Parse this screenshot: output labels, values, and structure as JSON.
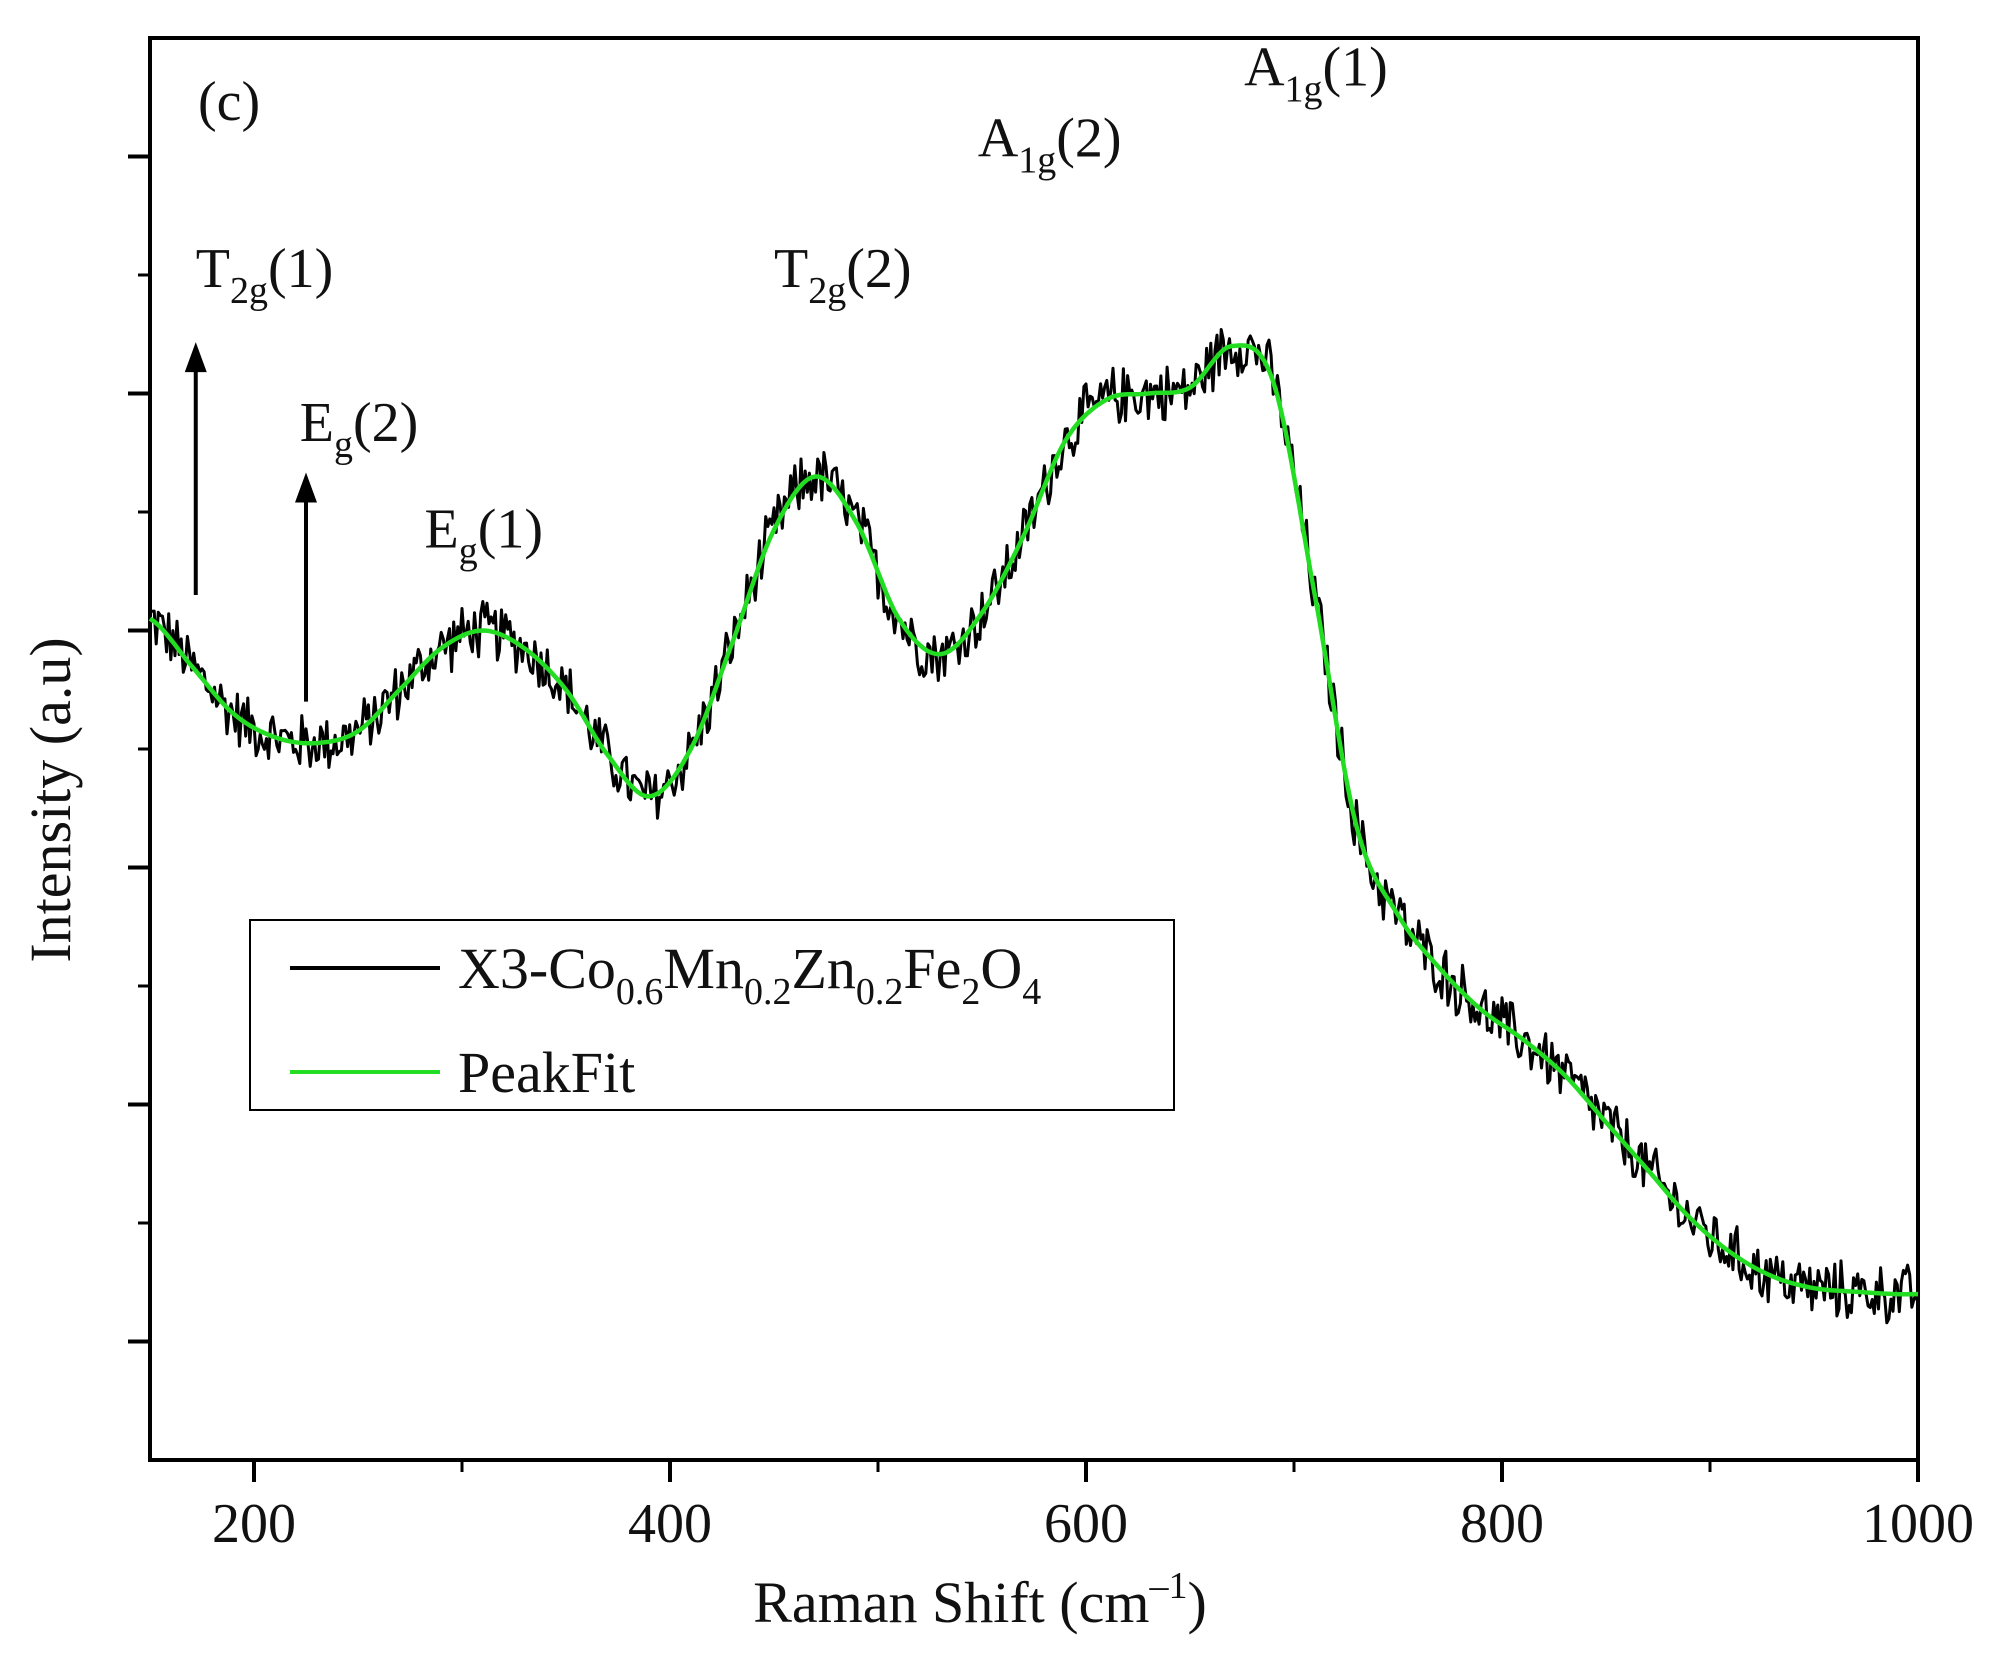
{
  "panel_label": "(c)",
  "chart_data": {
    "type": "line",
    "title": "",
    "panel_label": "(c)",
    "xlabel": "Raman Shift (cm–1)",
    "xlabel_parts": {
      "main": "Raman Shift (cm",
      "sup": "–1",
      "end": ")"
    },
    "ylabel": "Intensity (a.u)",
    "xlim": [
      150,
      1000
    ],
    "ylim": [
      0,
      12
    ],
    "x_ticks": [
      200,
      400,
      600,
      800,
      1000
    ],
    "x_minor_ticks": [
      300,
      500,
      700,
      900
    ],
    "y_ticks": [
      1,
      3,
      5,
      7,
      9,
      11
    ],
    "y_minor_ticks": [
      2,
      4,
      6,
      8,
      10
    ],
    "legend_position": "middle-left",
    "series": [
      {
        "name": "X3-Co0.6Mn0.2Zn0.2Fe2O4",
        "legend_parts": [
          {
            "t": "X3-Co",
            "s": "0.6"
          },
          {
            "t": "Mn",
            "s": "0.2"
          },
          {
            "t": "Zn",
            "s": "0.2"
          },
          {
            "t": "Fe",
            "s": "2"
          },
          {
            "t": "O",
            "s": "4"
          }
        ],
        "color": "#000000",
        "style": "noisy",
        "noise_amplitude": 0.28,
        "x": [
          150,
          170,
          190,
          210,
          230,
          250,
          270,
          290,
          310,
          330,
          350,
          370,
          390,
          410,
          430,
          450,
          470,
          490,
          510,
          530,
          550,
          570,
          590,
          610,
          630,
          650,
          670,
          690,
          710,
          730,
          750,
          770,
          790,
          810,
          830,
          850,
          870,
          890,
          910,
          930,
          950,
          970,
          990,
          1000
        ],
        "y": [
          7.1,
          6.7,
          6.3,
          6.1,
          6.05,
          6.15,
          6.5,
          6.85,
          7.0,
          6.85,
          6.5,
          5.95,
          5.6,
          6.0,
          6.9,
          7.85,
          8.3,
          7.9,
          7.1,
          6.8,
          7.15,
          7.8,
          8.6,
          8.95,
          9.0,
          9.05,
          9.4,
          9.1,
          7.3,
          5.35,
          4.6,
          4.15,
          3.8,
          3.55,
          3.25,
          2.85,
          2.45,
          2.05,
          1.75,
          1.55,
          1.45,
          1.42,
          1.4,
          1.4
        ]
      },
      {
        "name": "PeakFit",
        "color": "#22dd22",
        "style": "smooth",
        "x": [
          150,
          170,
          190,
          210,
          230,
          250,
          270,
          290,
          310,
          330,
          350,
          370,
          390,
          410,
          430,
          450,
          470,
          490,
          510,
          530,
          550,
          570,
          590,
          610,
          630,
          650,
          670,
          690,
          710,
          730,
          750,
          770,
          790,
          810,
          830,
          850,
          870,
          890,
          910,
          930,
          950,
          970,
          990,
          1000
        ],
        "y": [
          7.1,
          6.7,
          6.3,
          6.1,
          6.05,
          6.15,
          6.5,
          6.85,
          7.0,
          6.85,
          6.5,
          5.95,
          5.6,
          6.0,
          6.9,
          7.85,
          8.3,
          7.9,
          7.1,
          6.8,
          7.15,
          7.8,
          8.6,
          8.95,
          9.0,
          9.05,
          9.4,
          9.1,
          7.3,
          5.35,
          4.6,
          4.15,
          3.8,
          3.55,
          3.25,
          2.85,
          2.45,
          2.05,
          1.75,
          1.55,
          1.45,
          1.42,
          1.4,
          1.4
        ]
      }
    ],
    "annotations": [
      {
        "id": "t2g1",
        "main": "T",
        "sub": "2g",
        "tail": "(1)",
        "x": 172,
        "y": 9.9,
        "arrow": {
          "x": 172,
          "y_from": 7.3,
          "y_to": 9.4
        }
      },
      {
        "id": "eg2",
        "main": "E",
        "sub": "g",
        "tail": "(2)",
        "x": 222,
        "y": 8.6,
        "arrow": {
          "x": 225,
          "y_from": 6.4,
          "y_to": 8.3
        }
      },
      {
        "id": "eg1",
        "main": "E",
        "sub": "g",
        "tail": "(1)",
        "x": 282,
        "y": 7.7
      },
      {
        "id": "t2g2",
        "main": "T",
        "sub": "2g",
        "tail": "(2)",
        "x": 450,
        "y": 9.9
      },
      {
        "id": "a1g2",
        "main": "A",
        "sub": "1g",
        "tail": "(2)",
        "x": 548,
        "y": 11.0
      },
      {
        "id": "a1g1",
        "main": "A",
        "sub": "1g",
        "tail": "(1)",
        "x": 676,
        "y": 11.6
      }
    ]
  }
}
